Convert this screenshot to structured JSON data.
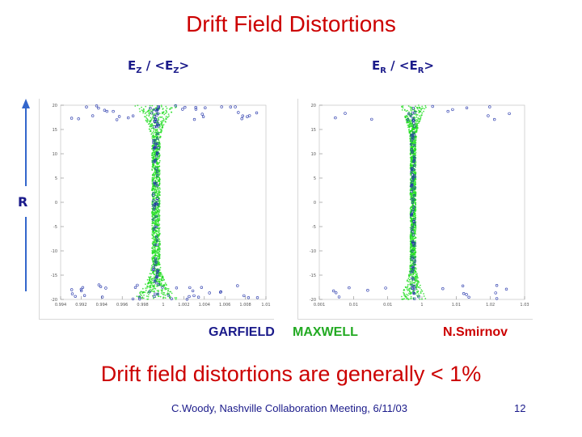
{
  "slide": {
    "title": "Drift Field Distortions",
    "conclusion": "Drift field distortions are generally < 1%",
    "footer": "C.Woody, Nashville Collaboration Meeting, 6/11/03",
    "page_number": "12"
  },
  "plots": {
    "left_label": {
      "base": "E",
      "sub": "Z",
      "mid": " / <E",
      "sub2": "Z",
      "end": ">"
    },
    "right_label": {
      "base": "E",
      "sub": "R",
      "mid": " / <E",
      "sub2": "R",
      "end": ">"
    },
    "r_axis_label": "R"
  },
  "credits": {
    "garfield": "GARFIELD",
    "maxwell": "MAXWELL",
    "author": "N.Smirnov"
  },
  "colors": {
    "title": "#cc0000",
    "label": "#1a1a8a",
    "garfield": "#1a1a8a",
    "maxwell": "#22aa22",
    "arrow": "#3366cc",
    "points": "#22dd22",
    "markers": "#2233aa"
  },
  "chart_data": [
    {
      "type": "scatter",
      "ylim": [
        -20,
        20
      ],
      "y_ticks": [
        "20",
        "15",
        "10",
        "5",
        "0",
        "-5",
        "-10",
        "-15",
        "-20"
      ],
      "x_ticks": [
        "0.994",
        "0.992",
        "0.994",
        "0.996",
        "0.998",
        "1",
        "1.002",
        "1.004",
        "1.006",
        "1.008",
        "1.01"
      ],
      "legend": false
    },
    {
      "type": "scatter",
      "ylim": [
        -20,
        20
      ],
      "y_ticks": [
        "20",
        "15",
        "10",
        "5",
        "0",
        "-5",
        "-10",
        "-15",
        "-20"
      ],
      "x_ticks": [
        "0.001",
        "0.01",
        "0.01",
        "1",
        "1.01",
        "1.02",
        "1.03"
      ],
      "legend": false
    }
  ]
}
